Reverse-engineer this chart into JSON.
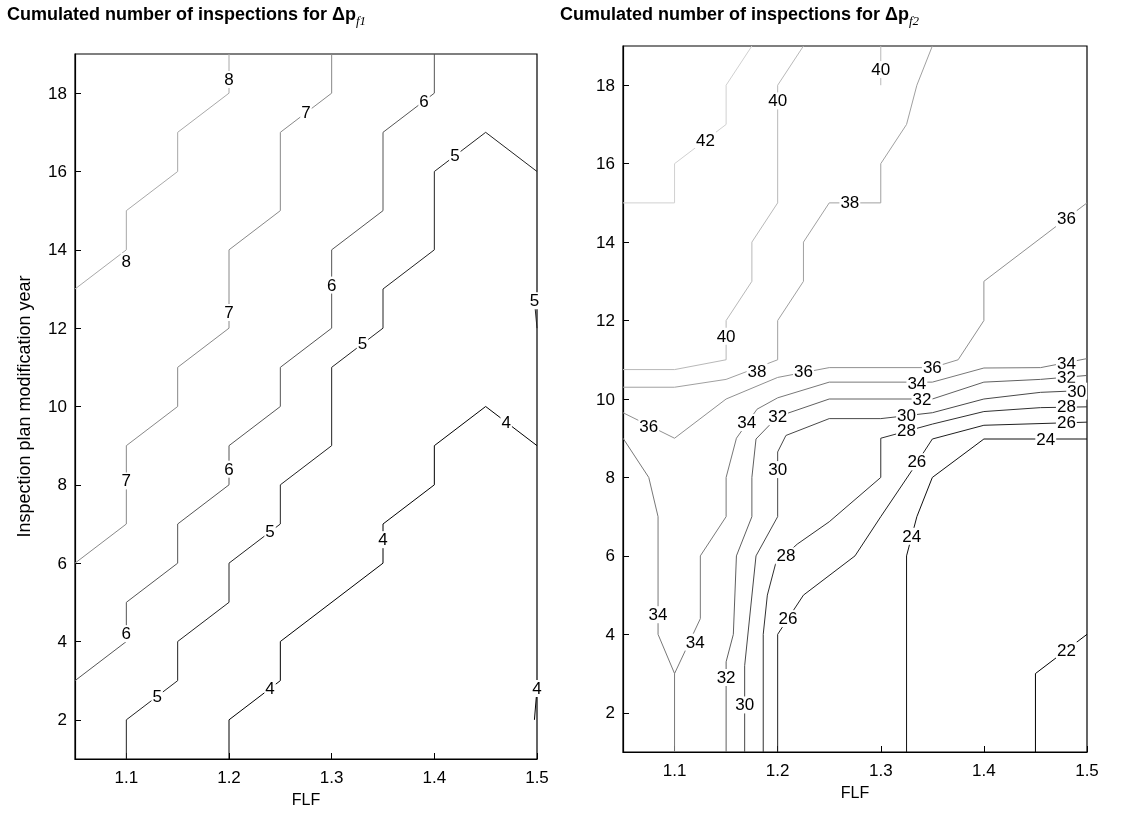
{
  "chart_data": [
    {
      "type": "line",
      "title": "Cumulated number of inspections for Δp$_{f1}$",
      "xlabel": "FLF",
      "ylabel": "Inspection plan modification year",
      "xlim": [
        1.05,
        1.5
      ],
      "xticks": [
        1.1,
        1.2,
        1.3,
        1.4,
        1.5
      ],
      "ylim": [
        1,
        19
      ],
      "yticks": [
        2,
        4,
        6,
        8,
        10,
        12,
        14,
        16,
        18
      ],
      "grid": false,
      "series": [
        {
          "color": "#a8a8a8",
          "x": [
            1.05,
            1.1,
            1.1,
            1.15,
            1.15,
            1.2,
            1.2
          ],
          "values": [
            13,
            14,
            15,
            16,
            17,
            18,
            19
          ]
        },
        {
          "color": "#888888",
          "x": [
            1.05,
            1.1,
            1.1,
            1.15,
            1.15,
            1.2,
            1.2,
            1.25,
            1.25,
            1.3,
            1.3
          ],
          "values": [
            6,
            7,
            9,
            10,
            11,
            12,
            14,
            15,
            17,
            18,
            19
          ]
        },
        {
          "color": "#555555",
          "x": [
            1.05,
            1.1,
            1.1,
            1.15,
            1.15,
            1.2,
            1.2,
            1.25,
            1.25,
            1.3,
            1.3,
            1.35,
            1.35,
            1.4,
            1.4
          ],
          "values": [
            3,
            4,
            5,
            6,
            7,
            8,
            9,
            10,
            11,
            12,
            14,
            15,
            17,
            18,
            19
          ]
        },
        {
          "color": "#222222",
          "x": [
            1.1,
            1.1,
            1.15,
            1.15,
            1.2,
            1.2,
            1.25,
            1.25,
            1.3,
            1.3,
            1.35,
            1.35,
            1.4,
            1.4,
            1.45,
            1.5
          ],
          "values": [
            1,
            2,
            3,
            4,
            5,
            6,
            7,
            8,
            9,
            11,
            12,
            13,
            14,
            16,
            17,
            16
          ]
        },
        {
          "color": "#222222",
          "x": [
            1.4975,
            1.5
          ],
          "values": [
            12.7,
            12
          ]
        },
        {
          "color": "#000000",
          "x": [
            1.2,
            1.2,
            1.25,
            1.25,
            1.35,
            1.35,
            1.4,
            1.4,
            1.45,
            1.5
          ],
          "values": [
            1,
            2,
            3,
            4,
            6,
            7,
            8,
            9,
            10,
            9
          ]
        },
        {
          "color": "#000000",
          "x": [
            1.4975,
            1.5
          ],
          "values": [
            2,
            2.8
          ]
        }
      ],
      "annotations": [
        {
          "text": "8",
          "x": 1.1,
          "y": 13.7
        },
        {
          "text": "8",
          "x": 1.2,
          "y": 18.35
        },
        {
          "text": "7",
          "x": 1.1,
          "y": 8.1
        },
        {
          "text": "7",
          "x": 1.2,
          "y": 12.4
        },
        {
          "text": "7",
          "x": 1.275,
          "y": 17.5
        },
        {
          "text": "6",
          "x": 1.1,
          "y": 4.2
        },
        {
          "text": "6",
          "x": 1.2,
          "y": 8.4
        },
        {
          "text": "6",
          "x": 1.3,
          "y": 13.1
        },
        {
          "text": "6",
          "x": 1.39,
          "y": 17.8
        },
        {
          "text": "5",
          "x": 1.13,
          "y": 2.6
        },
        {
          "text": "5",
          "x": 1.24,
          "y": 6.8
        },
        {
          "text": "5",
          "x": 1.33,
          "y": 11.6
        },
        {
          "text": "5",
          "x": 1.42,
          "y": 16.4
        },
        {
          "text": "5",
          "x": 1.4975,
          "y": 12.7
        },
        {
          "text": "4",
          "x": 1.24,
          "y": 2.8
        },
        {
          "text": "4",
          "x": 1.35,
          "y": 6.6
        },
        {
          "text": "4",
          "x": 1.47,
          "y": 9.6
        },
        {
          "text": "4",
          "x": 1.5,
          "y": 2.8
        }
      ]
    },
    {
      "type": "line",
      "title": "Cumulated number of inspections for Δp$_{f2}$",
      "xlabel": "FLF",
      "xlim": [
        1.05,
        1.5
      ],
      "xticks": [
        1.1,
        1.2,
        1.3,
        1.4,
        1.5
      ],
      "ylim": [
        1,
        19
      ],
      "yticks": [
        2,
        4,
        6,
        8,
        10,
        12,
        14,
        16,
        18
      ],
      "grid": false,
      "series": [
        {
          "color": "#d0d0d0",
          "x": [
            1.05,
            1.1,
            1.1,
            1.15,
            1.15,
            1.175
          ],
          "values": [
            15,
            15,
            16,
            17,
            18,
            19
          ]
        },
        {
          "color": "#b8b8b8",
          "x": [
            1.225,
            1.2,
            1.2,
            1.175,
            1.175,
            1.15,
            1.15,
            1.1,
            1.05
          ],
          "values": [
            19,
            18,
            15,
            14,
            13,
            12,
            11,
            10.75,
            10.75
          ]
        },
        {
          "color": "#b8b8b8",
          "x": [
            1.3,
            1.3
          ],
          "values": [
            18,
            19
          ]
        },
        {
          "color": "#a0a0a0",
          "x": [
            1.35,
            1.335,
            1.325,
            1.3,
            1.3,
            1.25,
            1.225,
            1.225,
            1.2,
            1.2,
            1.15,
            1.1,
            1.05
          ],
          "values": [
            19,
            18,
            17,
            16,
            15,
            15,
            14,
            13,
            12,
            11,
            10.5,
            10.3,
            10.3
          ]
        },
        {
          "color": "#909090",
          "x": [
            1.5,
            1.4,
            1.4,
            1.375,
            1.35,
            1.25,
            1.2,
            1.15,
            1.1,
            1.05
          ],
          "values": [
            15,
            13,
            12,
            11,
            10.8,
            10.8,
            10.55,
            10,
            9,
            9.65
          ]
        },
        {
          "color": "#787878",
          "x": [
            1.05,
            1.075,
            1.084,
            1.084,
            1.1,
            1.1
          ],
          "values": [
            9,
            8,
            7,
            4,
            3,
            1
          ]
        },
        {
          "color": "#787878",
          "x": [
            1.1,
            1.125,
            1.125,
            1.15,
            1.15,
            1.16,
            1.18,
            1.2,
            1.25,
            1.35,
            1.4,
            1.455,
            1.5
          ],
          "values": [
            3,
            4.4,
            6,
            7,
            8,
            9,
            9.74,
            10.03,
            10.43,
            10.43,
            10.79,
            10.8,
            11.03
          ]
        },
        {
          "color": "#606060",
          "x": [
            1.5,
            1.455,
            1.4,
            1.35,
            1.25,
            1.2,
            1.179,
            1.175,
            1.175,
            1.16,
            1.157,
            1.15,
            1.15
          ],
          "values": [
            10.6,
            10.5,
            10.43,
            10,
            10,
            9.55,
            8.98,
            8,
            7,
            6,
            4,
            3.3,
            1
          ]
        },
        {
          "color": "#484848",
          "x": [
            1.5,
            1.455,
            1.4,
            1.35,
            1.3,
            1.25,
            1.208,
            1.2,
            1.2,
            1.179,
            1.168,
            1.168
          ],
          "values": [
            10.22,
            10.17,
            10,
            9.65,
            9.5,
            9.5,
            9.07,
            8.65,
            7,
            6,
            3.2,
            1
          ]
        },
        {
          "color": "#303030",
          "x": [
            1.5,
            1.455,
            1.4,
            1.35,
            1.3,
            1.3,
            1.25,
            1.219,
            1.198,
            1.19,
            1.186,
            1.186
          ],
          "values": [
            9.8,
            9.78,
            9.68,
            9.36,
            9,
            8,
            6.87,
            6.3,
            5.8,
            5,
            4,
            1
          ]
        },
        {
          "color": "#202020",
          "x": [
            1.5,
            1.4,
            1.35,
            1.33,
            1.3,
            1.275,
            1.225,
            1.2,
            1.2
          ],
          "values": [
            9.41,
            9.33,
            8.98,
            8.17,
            7,
            6,
            5,
            4,
            1
          ]
        },
        {
          "color": "#101010",
          "x": [
            1.5,
            1.4,
            1.35,
            1.335,
            1.325,
            1.325
          ],
          "values": [
            8.98,
            8.98,
            8,
            7,
            6,
            1
          ]
        },
        {
          "color": "#000000",
          "x": [
            1.45,
            1.45,
            1.5
          ],
          "values": [
            1,
            3,
            4
          ]
        }
      ],
      "annotations": [
        {
          "text": "42",
          "x": 1.13,
          "y": 16.6
        },
        {
          "text": "40",
          "x": 1.2,
          "y": 17.6
        },
        {
          "text": "40",
          "x": 1.15,
          "y": 11.6
        },
        {
          "text": "40",
          "x": 1.3,
          "y": 18.4
        },
        {
          "text": "38",
          "x": 1.27,
          "y": 15
        },
        {
          "text": "38",
          "x": 1.18,
          "y": 10.7
        },
        {
          "text": "36",
          "x": 1.48,
          "y": 14.6
        },
        {
          "text": "36",
          "x": 1.35,
          "y": 10.8
        },
        {
          "text": "36",
          "x": 1.225,
          "y": 10.7
        },
        {
          "text": "36",
          "x": 1.075,
          "y": 9.3
        },
        {
          "text": "34",
          "x": 1.084,
          "y": 4.5
        },
        {
          "text": "34",
          "x": 1.12,
          "y": 3.8
        },
        {
          "text": "34",
          "x": 1.17,
          "y": 9.4
        },
        {
          "text": "34",
          "x": 1.335,
          "y": 10.4
        },
        {
          "text": "34",
          "x": 1.48,
          "y": 10.9
        },
        {
          "text": "32",
          "x": 1.48,
          "y": 10.55
        },
        {
          "text": "32",
          "x": 1.34,
          "y": 10
        },
        {
          "text": "32",
          "x": 1.2,
          "y": 9.55
        },
        {
          "text": "32",
          "x": 1.15,
          "y": 2.9
        },
        {
          "text": "30",
          "x": 1.49,
          "y": 10.2
        },
        {
          "text": "30",
          "x": 1.325,
          "y": 9.57
        },
        {
          "text": "30",
          "x": 1.2,
          "y": 8.2
        },
        {
          "text": "30",
          "x": 1.168,
          "y": 2.2
        },
        {
          "text": "28",
          "x": 1.48,
          "y": 9.8
        },
        {
          "text": "28",
          "x": 1.325,
          "y": 9.2
        },
        {
          "text": "28",
          "x": 1.208,
          "y": 6
        },
        {
          "text": "26",
          "x": 1.48,
          "y": 9.4
        },
        {
          "text": "26",
          "x": 1.335,
          "y": 8.4
        },
        {
          "text": "26",
          "x": 1.21,
          "y": 4.4
        },
        {
          "text": "24",
          "x": 1.46,
          "y": 8.98
        },
        {
          "text": "24",
          "x": 1.33,
          "y": 6.5
        },
        {
          "text": "22",
          "x": 1.48,
          "y": 3.6
        }
      ]
    }
  ]
}
